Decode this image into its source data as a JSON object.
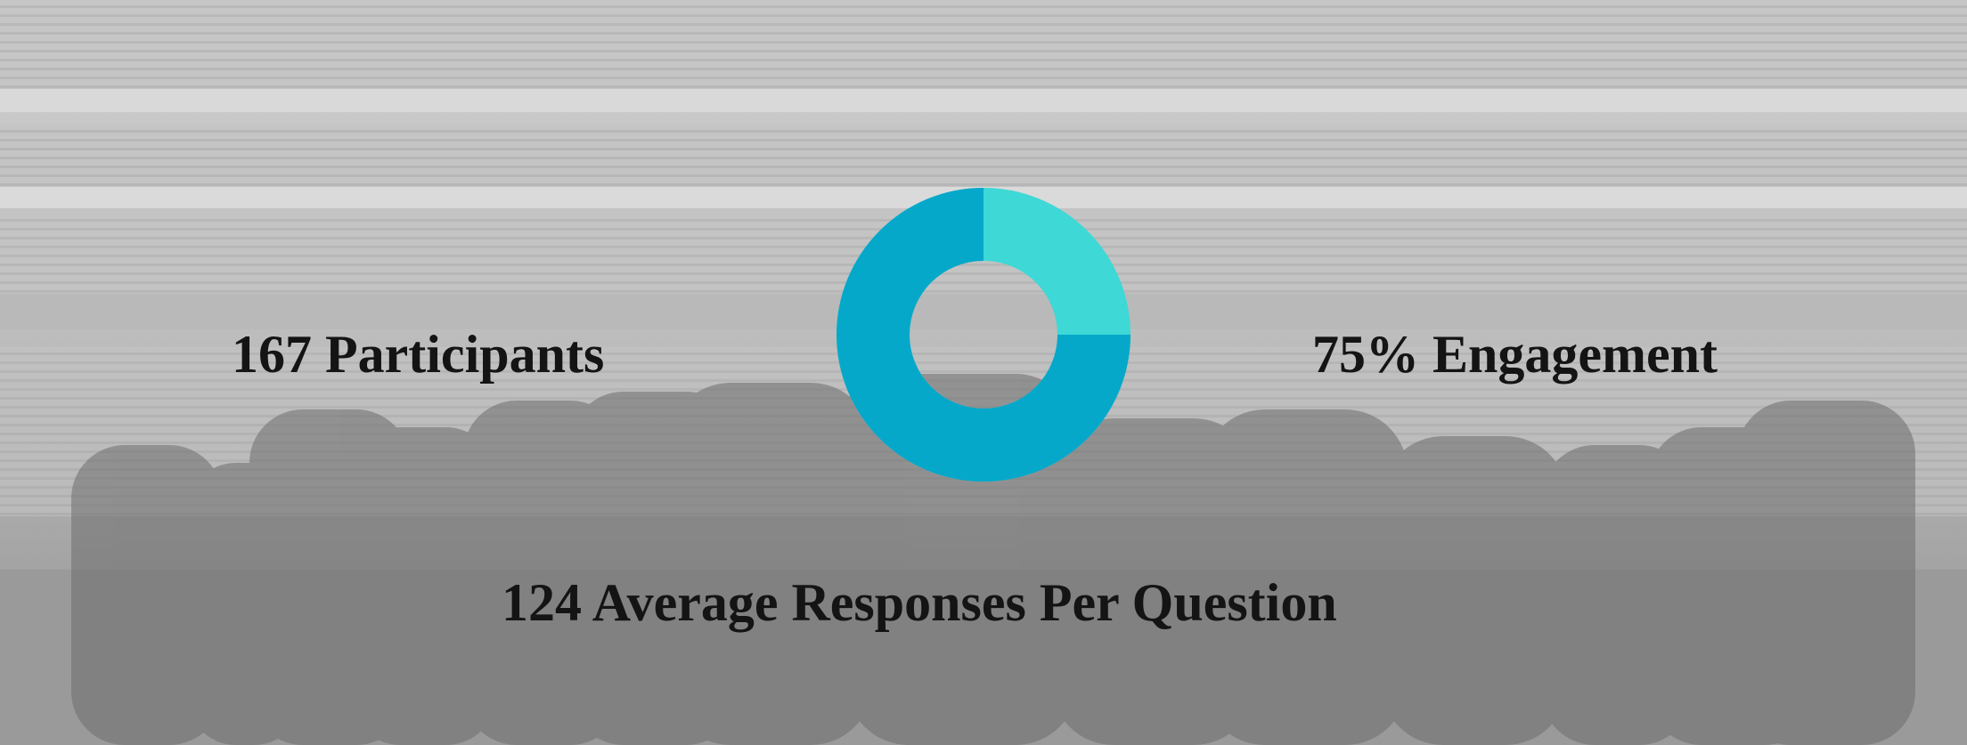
{
  "chart_data": {
    "type": "donut",
    "value": 75,
    "ylim": [
      0,
      100
    ],
    "color": "#06a8ca",
    "track_color": "#3ed8d6",
    "stats": [
      "167 Participants",
      "75% Engagement",
      "124 Average Responses Per Question"
    ]
  }
}
